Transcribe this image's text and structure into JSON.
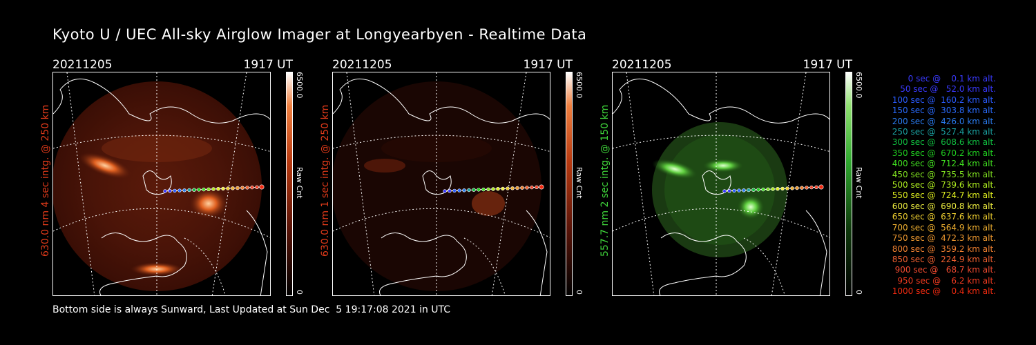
{
  "title": "Kyoto U / UEC All-sky Airglow Imager at Longyearbyen - Realtime Data",
  "panels": [
    {
      "date": "20211205",
      "time": "1917 UT",
      "ylabel": "630.0 nm 4 sec intg. @ 250 km",
      "label_color": "#e03a1a",
      "cbar_max": "6500.0",
      "cbar_min": "0",
      "cbar_unit": "Raw Cnt",
      "cbar_color": "#b83a10"
    },
    {
      "date": "20211205",
      "time": "1917 UT",
      "ylabel": "630.0 nm 1 sec intg. @ 250 km",
      "label_color": "#e03a1a",
      "cbar_max": "6500.0",
      "cbar_min": "0",
      "cbar_unit": "Raw Cnt",
      "cbar_color": "#b83a10"
    },
    {
      "date": "20211205",
      "time": "1917 UT",
      "ylabel": "557.7 nm 2 sec intg. @ 150 km",
      "label_color": "#3fd43a",
      "cbar_max": "6500.0",
      "cbar_min": "0",
      "cbar_unit": "Raw Cnt",
      "cbar_color": "#2fa82f"
    }
  ],
  "legend": [
    {
      "text": "   0 sec @    0.1 km alt.",
      "color": "#3a3aff"
    },
    {
      "text": "  50 sec @   52.0 km alt.",
      "color": "#3a3aff"
    },
    {
      "text": " 100 sec @  160.2 km alt.",
      "color": "#2a5cff"
    },
    {
      "text": " 150 sec @  303.8 km alt.",
      "color": "#2a6cff"
    },
    {
      "text": " 200 sec @  426.0 km alt.",
      "color": "#2a7cf0"
    },
    {
      "text": " 250 sec @  527.4 km alt.",
      "color": "#1aa0a0"
    },
    {
      "text": " 300 sec @  608.6 km alt.",
      "color": "#10c040"
    },
    {
      "text": " 350 sec @  670.2 km alt.",
      "color": "#20d020"
    },
    {
      "text": " 400 sec @  712.4 km alt.",
      "color": "#40e020"
    },
    {
      "text": " 450 sec @  735.5 km alt.",
      "color": "#80e020"
    },
    {
      "text": " 500 sec @  739.6 km alt.",
      "color": "#b0f020"
    },
    {
      "text": " 550 sec @  724.7 km alt.",
      "color": "#e0f020"
    },
    {
      "text": " 600 sec @  690.8 km alt.",
      "color": "#f0f040"
    },
    {
      "text": " 650 sec @  637.6 km alt.",
      "color": "#f0d030"
    },
    {
      "text": " 700 sec @  564.9 km alt.",
      "color": "#f0b030"
    },
    {
      "text": " 750 sec @  472.3 km alt.",
      "color": "#f09a30"
    },
    {
      "text": " 800 sec @  359.2 km alt.",
      "color": "#f08030"
    },
    {
      "text": " 850 sec @  224.9 km alt.",
      "color": "#f06030"
    },
    {
      "text": " 900 sec @   68.7 km alt.",
      "color": "#f04a30"
    },
    {
      "text": " 950 sec @    6.2 km alt.",
      "color": "#f03a20"
    },
    {
      "text": "1000 sec @    0.4 km alt.",
      "color": "#f02a10"
    }
  ],
  "footer": "Bottom side is always Sunward, Last Updated at Sun Dec  5 19:17:08 2021 in UTC"
}
